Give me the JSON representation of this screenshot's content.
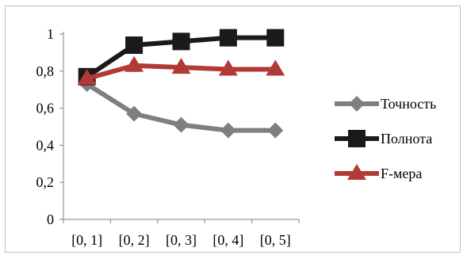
{
  "chart_data": {
    "type": "line",
    "title": "",
    "xlabel": "",
    "ylabel": "",
    "categories": [
      "[0, 1]",
      "[0, 2]",
      "[0, 3]",
      "[0, 4]",
      "[0, 5]"
    ],
    "ylim": [
      0,
      1
    ],
    "y_ticks": [
      "0",
      "0,2",
      "0,4",
      "0,6",
      "0,8",
      "1"
    ],
    "y_tick_values": [
      0,
      0.2,
      0.4,
      0.6,
      0.8,
      1
    ],
    "grid": false,
    "legend_position": "right",
    "series": [
      {
        "name": "Точность",
        "marker": "diamond",
        "color": "#7f7f7f",
        "values": [
          0.73,
          0.57,
          0.51,
          0.48,
          0.48
        ]
      },
      {
        "name": "Полнота",
        "marker": "square",
        "color": "#1a1a1a",
        "values": [
          0.77,
          0.94,
          0.96,
          0.98,
          0.98
        ]
      },
      {
        "name": "F-мера",
        "marker": "triangle",
        "color": "#b03a35",
        "values": [
          0.76,
          0.83,
          0.82,
          0.81,
          0.81
        ]
      }
    ]
  }
}
